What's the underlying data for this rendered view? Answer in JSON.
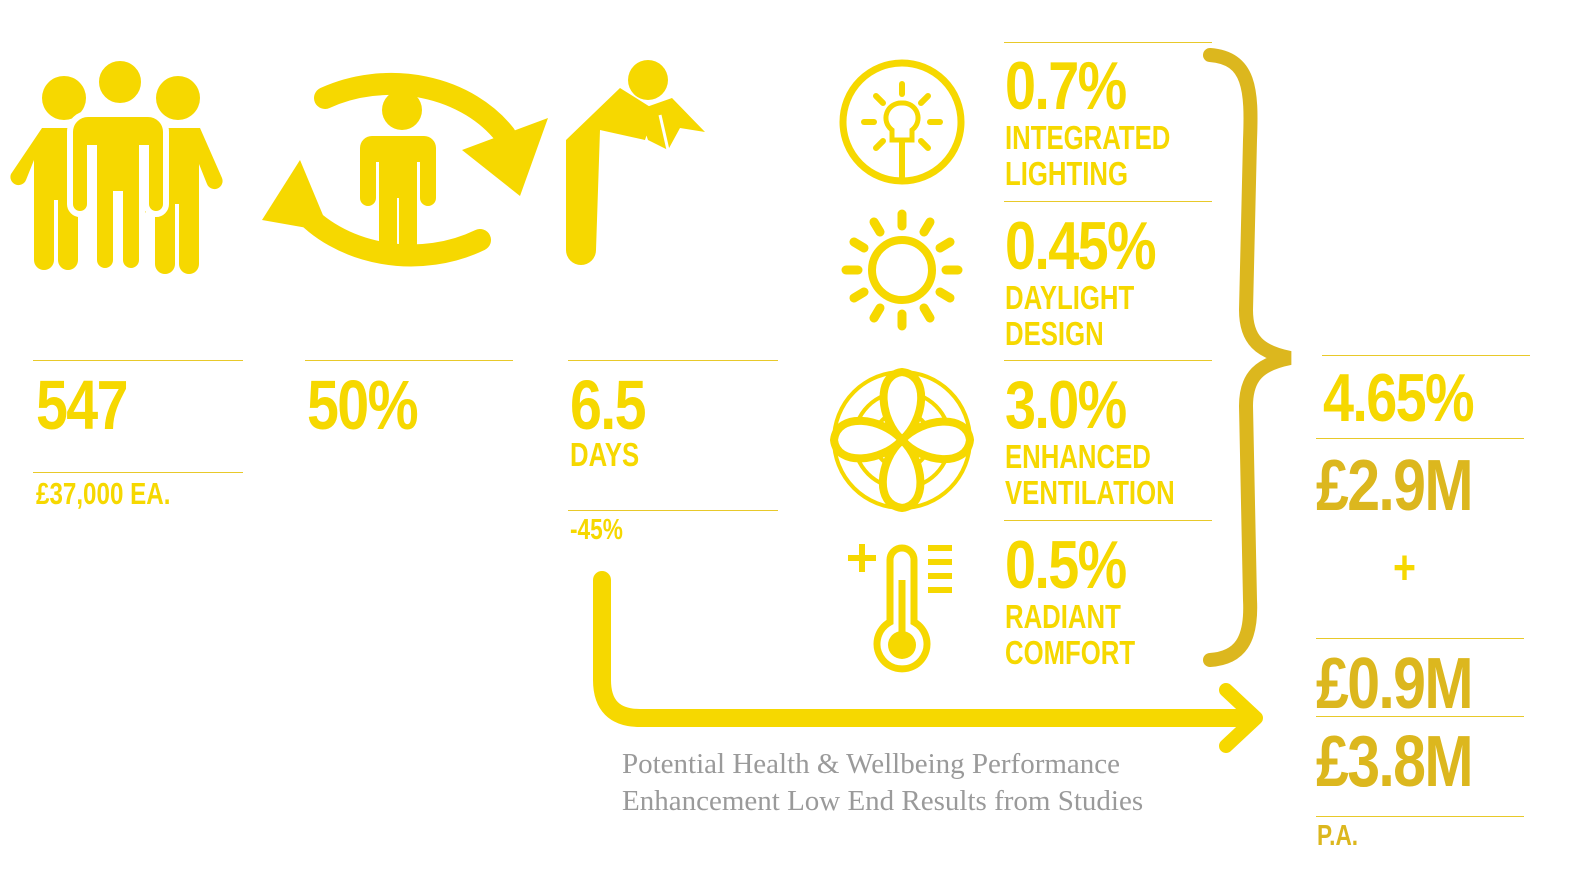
{
  "stats": {
    "staff": {
      "value": "547",
      "sub": "£37,000 EA."
    },
    "retention": {
      "value": "50%"
    },
    "sickness": {
      "value": "6.5",
      "unit": "DAYS",
      "sub": "-45%"
    }
  },
  "factors": [
    {
      "pct": "0.7%",
      "line1": "INTEGRATED",
      "line2": "LIGHTING",
      "icon": "lightbulb-icon"
    },
    {
      "pct": "0.45%",
      "line1": "DAYLIGHT",
      "line2": "DESIGN",
      "icon": "sun-icon"
    },
    {
      "pct": "3.0%",
      "line1": "ENHANCED",
      "line2": "VENTILATION",
      "icon": "fan-icon"
    },
    {
      "pct": "0.5%",
      "line1": "RADIANT",
      "line2": "COMFORT",
      "icon": "thermometer-icon"
    }
  ],
  "results": {
    "total_pct": "4.65%",
    "productivity_value": "£2.9M",
    "plus": "+",
    "absence_value": "£0.9M",
    "total_value": "£3.8M",
    "period": "P.A."
  },
  "caption": {
    "line1": "Potential Health & Wellbeing Performance",
    "line2": "Enhancement Low End Results from Studies"
  },
  "colors": {
    "yellow": "#f6d800",
    "gold": "#dcb71e",
    "rule": "#e8c92a",
    "caption": "#9a9a9a"
  }
}
